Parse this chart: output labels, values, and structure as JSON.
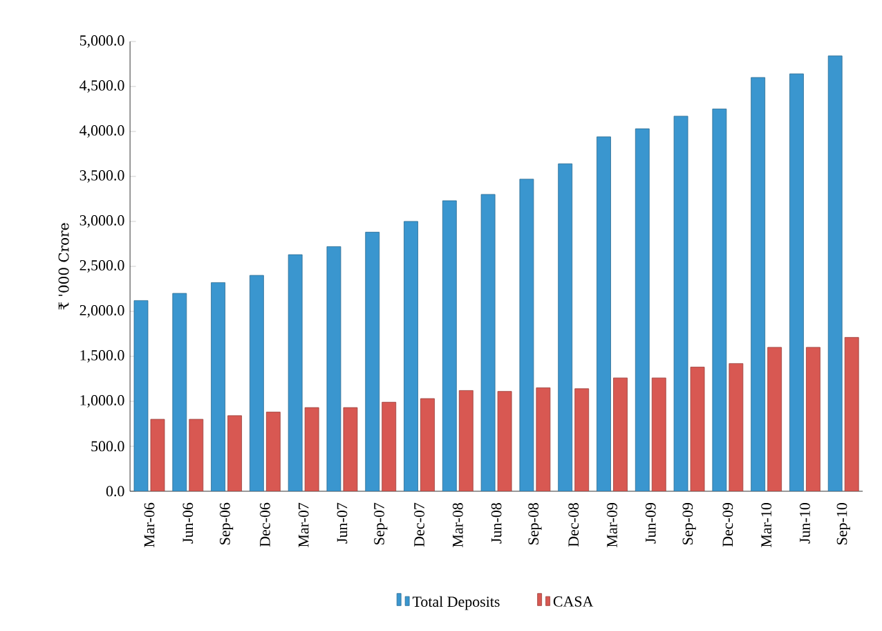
{
  "chart_data": {
    "type": "bar",
    "ylabel": "₹ '000 Crore",
    "categories": [
      "Mar-06",
      "Jun-06",
      "Sep-06",
      "Dec-06",
      "Mar-07",
      "Jun-07",
      "Sep-07",
      "Dec-07",
      "Mar-08",
      "Jun-08",
      "Sep-08",
      "Dec-08",
      "Mar-09",
      "Jun-09",
      "Sep-09",
      "Dec-09",
      "Mar-10",
      "Jun-10",
      "Sep-10"
    ],
    "series": [
      {
        "name": "Total Deposits",
        "color": "#3a96cf",
        "values": [
          2120,
          2200,
          2320,
          2400,
          2630,
          2720,
          2880,
          3000,
          3230,
          3300,
          3470,
          3640,
          3940,
          4030,
          4170,
          4250,
          4600,
          4640,
          4840
        ]
      },
      {
        "name": "CASA",
        "color": "#d85852",
        "values": [
          800,
          800,
          840,
          880,
          930,
          930,
          990,
          1030,
          1120,
          1110,
          1150,
          1140,
          1260,
          1260,
          1380,
          1420,
          1600,
          1600,
          1710
        ]
      }
    ],
    "ylim": [
      0,
      5000
    ],
    "yticks": [
      {
        "value": 0,
        "label": "0.0"
      },
      {
        "value": 500,
        "label": "500.0"
      },
      {
        "value": 1000,
        "label": "1,000.0"
      },
      {
        "value": 1500,
        "label": "1,500.0"
      },
      {
        "value": 2000,
        "label": "2,000.0"
      },
      {
        "value": 2500,
        "label": "2,500.0"
      },
      {
        "value": 3000,
        "label": "3,000.0"
      },
      {
        "value": 3500,
        "label": "3,500.0"
      },
      {
        "value": 4000,
        "label": "4,000.0"
      },
      {
        "value": 4500,
        "label": "4,500.0"
      },
      {
        "value": 5000,
        "label": "5,000.0"
      }
    ],
    "legend": "bottom"
  }
}
